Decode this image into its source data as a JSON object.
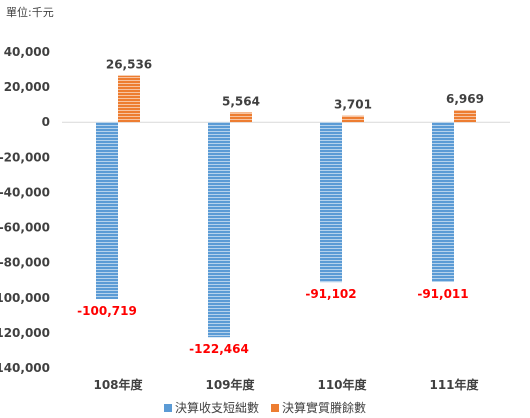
{
  "unit_label": "單位:千元",
  "colors": {
    "series1": "#5b9bd5",
    "series1_stripe": "#ffffff",
    "series2": "#ed7d31",
    "series2_stripe": "#ffffff",
    "negative_label": "#ff0000",
    "positive_label": "#404040",
    "axis_text": "#404040",
    "axis_line": "#d9d9d9"
  },
  "chart_data": {
    "type": "bar",
    "categories": [
      "108年度",
      "109年度",
      "110年度",
      "111年度"
    ],
    "series": [
      {
        "name": "決算收支短絀數",
        "values": [
          -100719,
          -122464,
          -91102,
          -91011
        ],
        "labels": [
          "-100,719",
          "-122,464",
          "-91,102",
          "-91,011"
        ]
      },
      {
        "name": "決算實質賸餘數",
        "values": [
          26536,
          5564,
          3701,
          6969
        ],
        "labels": [
          "26,536",
          "5,564",
          "3,701",
          "6,969"
        ]
      }
    ],
    "yticks": [
      40000,
      20000,
      0,
      -20000,
      -40000,
      -60000,
      -80000,
      -100000,
      -120000,
      -140000
    ],
    "ytick_labels": [
      "40,000",
      "20,000",
      "0",
      "-20,000",
      "-40,000",
      "-60,000",
      "-80,000",
      "-100,000",
      "-120,000",
      "-140,000"
    ],
    "ylim": [
      -140000,
      40000
    ],
    "grid": false,
    "legend_position": "bottom"
  }
}
